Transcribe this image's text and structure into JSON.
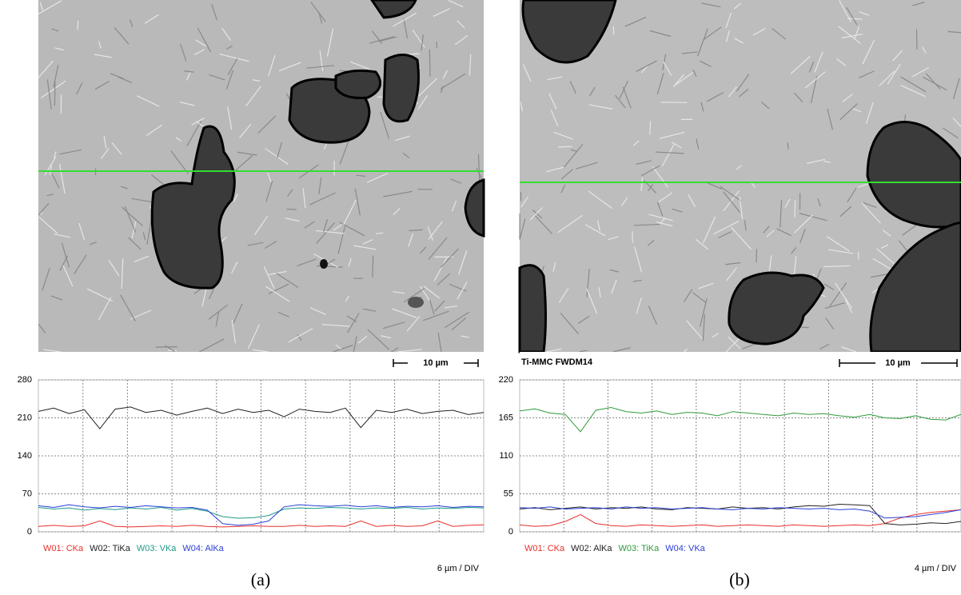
{
  "chart_data": [
    {
      "type": "line",
      "caption": "(a)",
      "scale_bar": "10 µm",
      "x_label": "6 µm / DIV",
      "ylim": [
        0,
        280
      ],
      "yticks": [
        0,
        70,
        140,
        210,
        280
      ],
      "grid": true,
      "series": [
        {
          "name": "W01: CKa",
          "color": "#e8302a",
          "values": [
            10,
            12,
            10,
            11,
            20,
            10,
            9,
            10,
            11,
            10,
            12,
            10,
            9,
            10,
            11,
            10,
            10,
            12,
            10,
            11,
            10,
            20,
            10,
            12,
            10,
            11,
            20,
            10,
            12,
            13
          ]
        },
        {
          "name": "W02: TiKa",
          "color": "#222222",
          "values": [
            222,
            228,
            218,
            225,
            190,
            226,
            230,
            220,
            224,
            215,
            222,
            228,
            218,
            226,
            220,
            224,
            212,
            226,
            222,
            220,
            228,
            192,
            224,
            220,
            226,
            218,
            222,
            224,
            216,
            220
          ]
        },
        {
          "name": "W03: VKa",
          "color": "#1f9a8a",
          "values": [
            45,
            42,
            44,
            40,
            43,
            41,
            44,
            42,
            45,
            40,
            43,
            38,
            28,
            25,
            26,
            30,
            42,
            44,
            43,
            45,
            44,
            42,
            44,
            43,
            45,
            42,
            44,
            43,
            45,
            44
          ]
        },
        {
          "name": "W04: AlKa",
          "color": "#2a3fd6",
          "values": [
            48,
            45,
            50,
            46,
            44,
            47,
            45,
            48,
            46,
            44,
            45,
            40,
            15,
            12,
            14,
            20,
            46,
            50,
            48,
            47,
            49,
            46,
            48,
            45,
            47,
            46,
            48,
            45,
            47,
            46
          ]
        }
      ]
    },
    {
      "type": "line",
      "caption": "(b)",
      "scale_bar": "10 µm",
      "image_label": "Ti-MMC FWDM14",
      "x_label": "4 µm / DIV",
      "ylim": [
        0,
        220
      ],
      "yticks": [
        0,
        55,
        110,
        165,
        220
      ],
      "grid": true,
      "series": [
        {
          "name": "W01: CKa",
          "color": "#e8302a",
          "values": [
            10,
            8,
            9,
            15,
            25,
            12,
            9,
            8,
            10,
            9,
            8,
            9,
            10,
            8,
            9,
            10,
            9,
            8,
            10,
            9,
            8,
            9,
            10,
            9,
            12,
            20,
            25,
            28,
            30,
            32
          ]
        },
        {
          "name": "W02: AlKa",
          "color": "#222222",
          "values": [
            33,
            35,
            32,
            34,
            36,
            33,
            35,
            34,
            36,
            33,
            32,
            35,
            34,
            33,
            36,
            34,
            35,
            33,
            36,
            38,
            37,
            40,
            39,
            38,
            12,
            10,
            11,
            13,
            12,
            15
          ]
        },
        {
          "name": "W03: TiKa",
          "color": "#2e9a3a",
          "values": [
            175,
            178,
            172,
            170,
            145,
            176,
            180,
            174,
            172,
            175,
            170,
            173,
            172,
            168,
            174,
            172,
            170,
            168,
            172,
            170,
            171,
            168,
            166,
            170,
            165,
            164,
            168,
            163,
            162,
            170
          ]
        },
        {
          "name": "W04: VKa",
          "color": "#2a3fd6",
          "values": [
            35,
            34,
            36,
            33,
            34,
            35,
            33,
            36,
            34,
            35,
            33,
            34,
            35,
            33,
            32,
            34,
            33,
            35,
            34,
            33,
            34,
            32,
            33,
            30,
            20,
            21,
            22,
            25,
            28,
            32
          ]
        }
      ]
    }
  ]
}
